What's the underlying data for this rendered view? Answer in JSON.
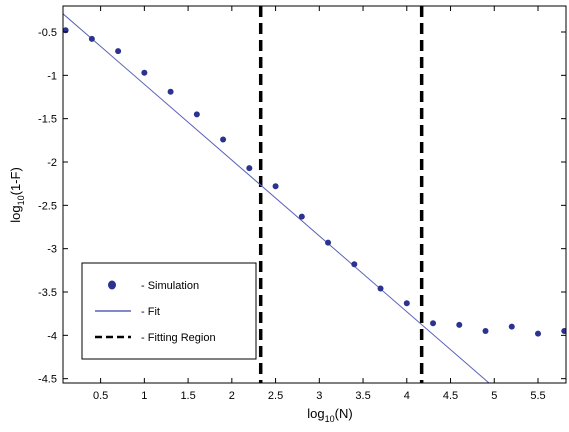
{
  "chart_data": {
    "type": "scatter",
    "title": "",
    "xlabel": "log",
    "xlabel_sub": "10",
    "xlabel_suffix": "(N)",
    "ylabel": "log",
    "ylabel_sub": "10",
    "ylabel_suffix": "(1-F)",
    "xlim": [
      0.07,
      5.82
    ],
    "ylim": [
      -4.55,
      -0.2
    ],
    "x_ticks": [
      0.5,
      1,
      1.5,
      2,
      2.5,
      3,
      3.5,
      4,
      4.5,
      5,
      5.5
    ],
    "x_tick_labels": [
      "0.5",
      "1",
      "1.5",
      "2",
      "2.5",
      "3",
      "3.5",
      "4",
      "4.5",
      "5",
      "5.5"
    ],
    "y_ticks": [
      -0.5,
      -1,
      -1.5,
      -2,
      -2.5,
      -3,
      -3.5,
      -4,
      -4.5
    ],
    "y_tick_labels": [
      "-0.5",
      "-1",
      "-1.5",
      "-2",
      "-2.5",
      "-3",
      "-3.5",
      "-4",
      "-4.5"
    ],
    "grid": false,
    "legend_position": "bottom-left",
    "series": [
      {
        "name": "- Simulation",
        "kind": "scatter",
        "color": "#2b3290",
        "x": [
          0.1,
          0.4,
          0.7,
          1.0,
          1.3,
          1.6,
          1.9,
          2.2,
          2.5,
          2.8,
          3.1,
          3.4,
          3.7,
          4.0,
          4.3,
          4.6,
          4.9,
          5.2,
          5.5,
          5.8
        ],
        "y": [
          -0.48,
          -0.58,
          -0.72,
          -0.97,
          -1.19,
          -1.45,
          -1.74,
          -2.07,
          -2.28,
          -2.63,
          -2.93,
          -3.18,
          -3.46,
          -3.63,
          -3.86,
          -3.88,
          -3.95,
          -3.9,
          -3.98,
          -3.95
        ]
      },
      {
        "name": "- Fit",
        "kind": "line",
        "color": "#5a62b8",
        "x": [
          0.07,
          4.94
        ],
        "y": [
          -0.29,
          -4.55
        ]
      }
    ],
    "fitting_region": {
      "name": "- Fitting Region",
      "color": "#000000",
      "x": [
        2.33,
        4.17
      ]
    }
  }
}
